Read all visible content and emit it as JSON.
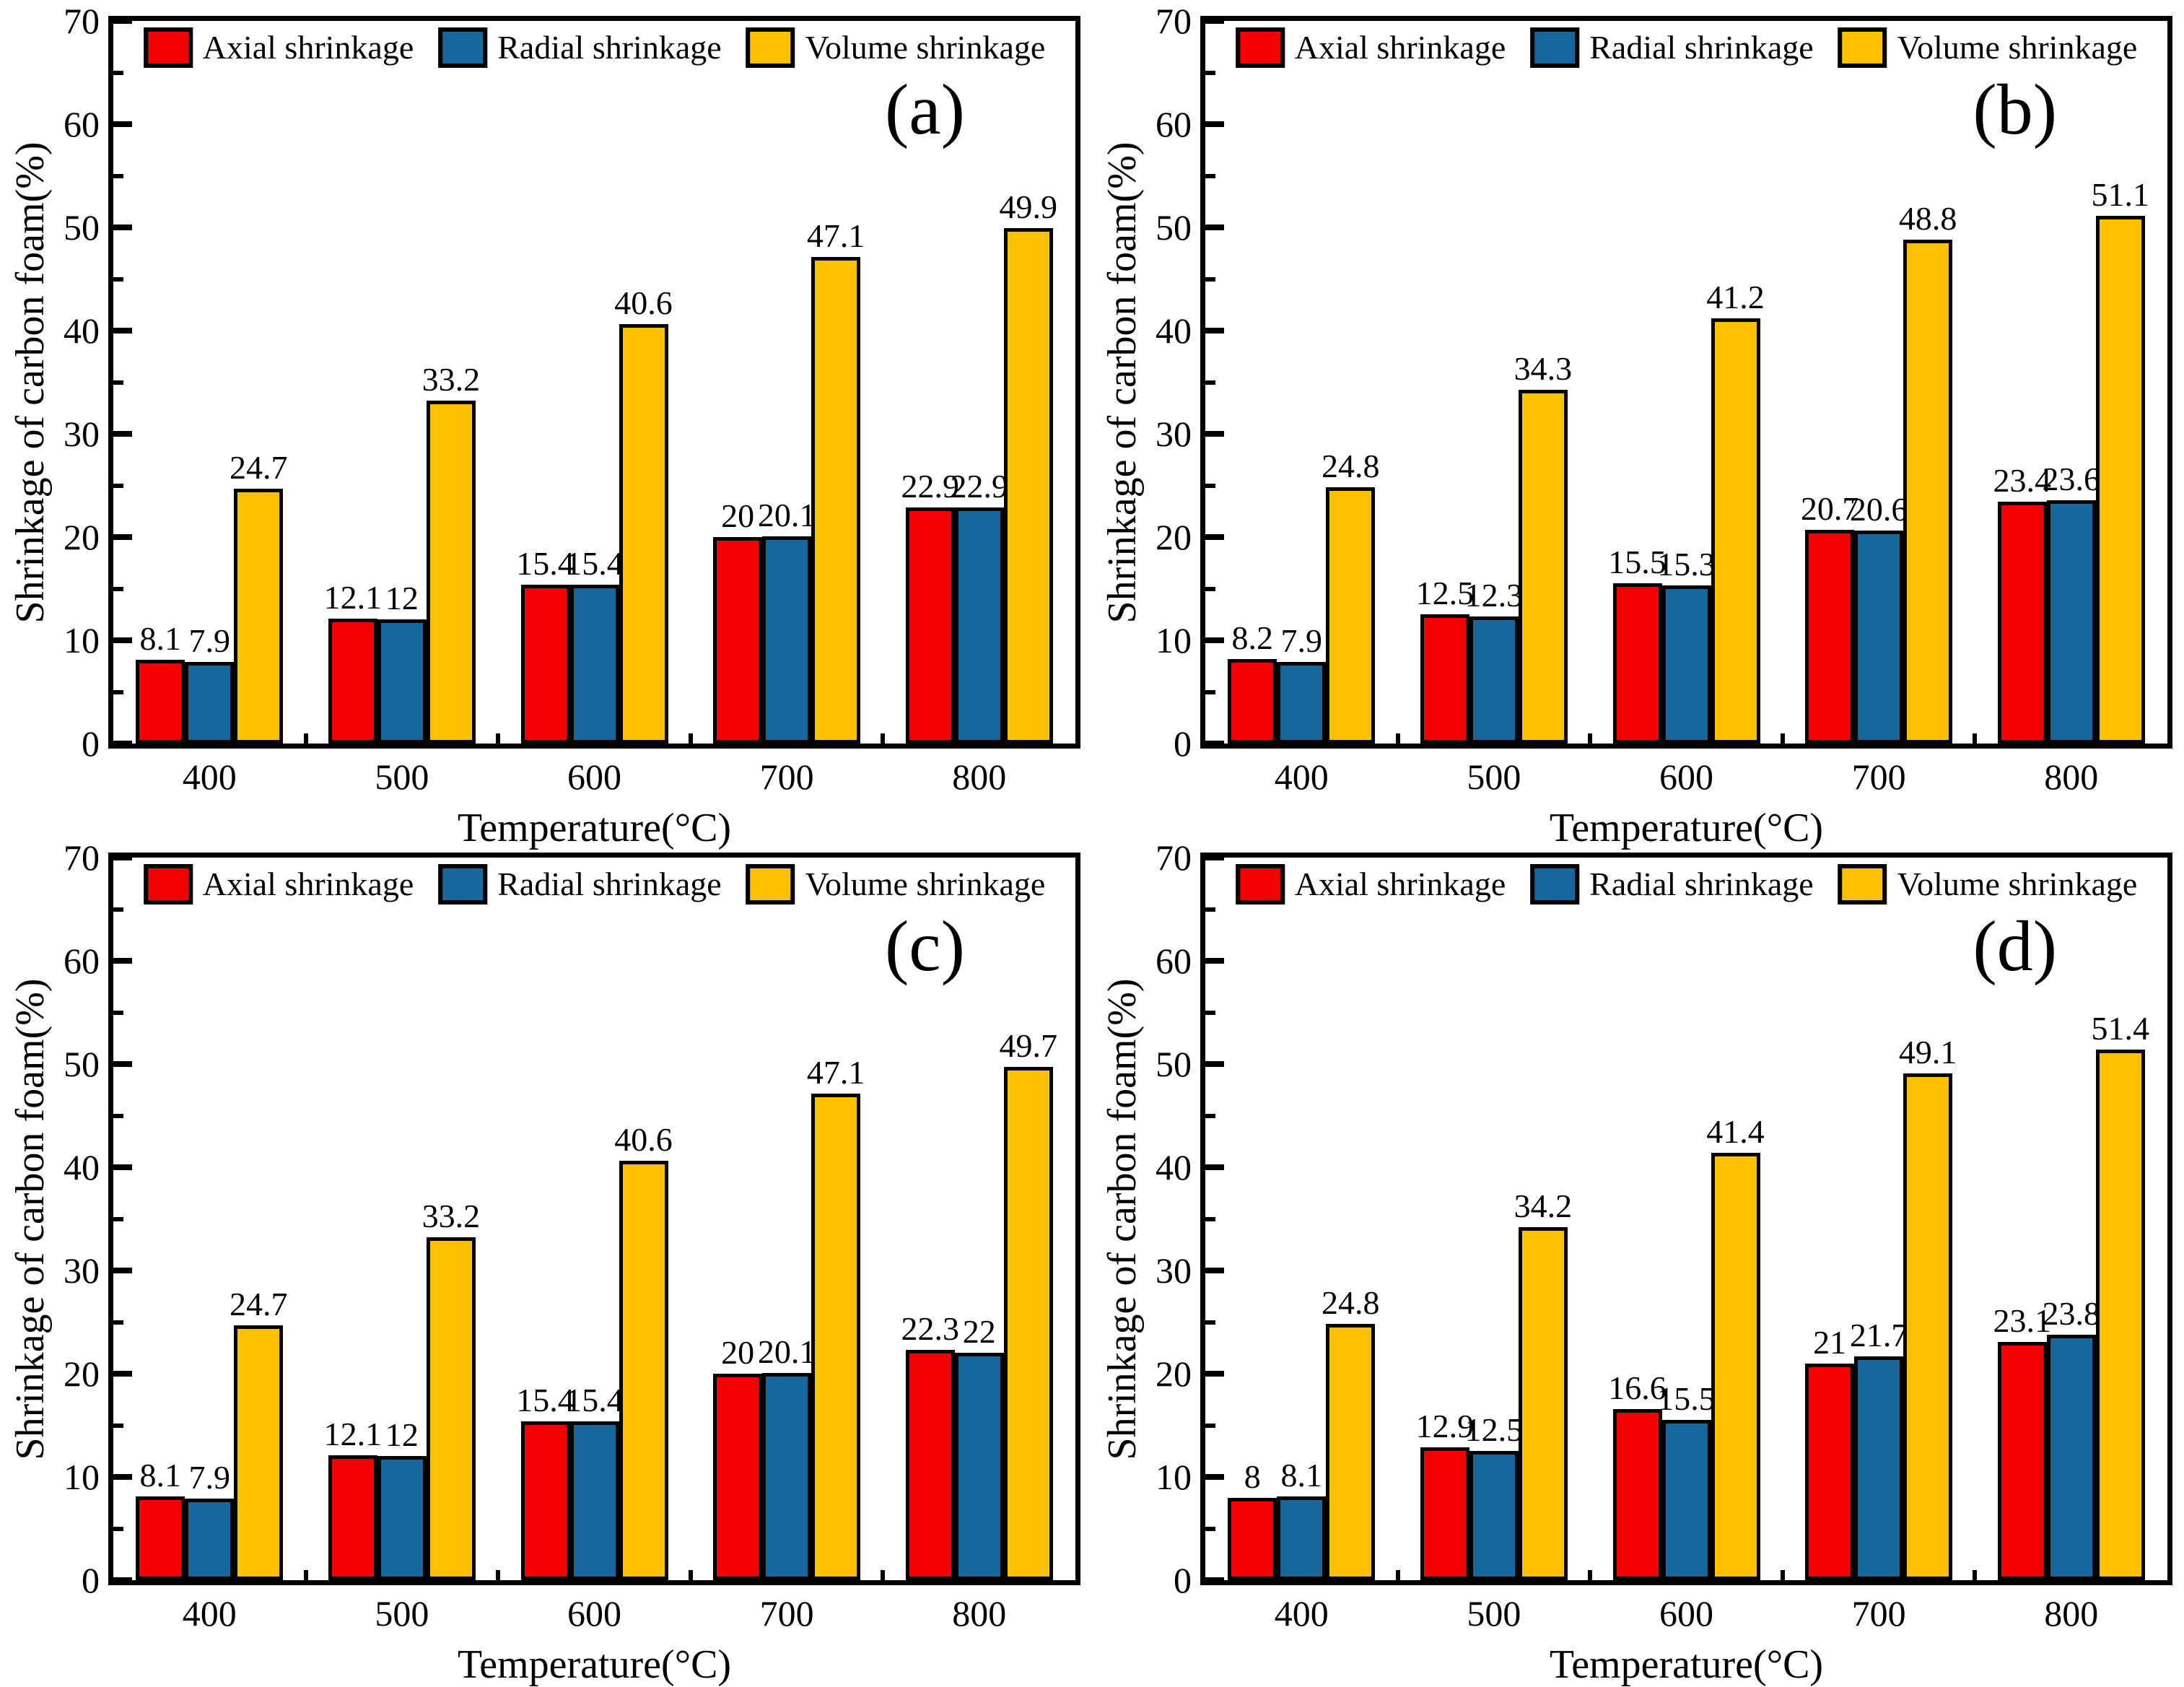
{
  "figure": {
    "ylabel": "Shrinkage of carbon foam(%)",
    "xlabel": "Temperature(°C)",
    "legend": [
      "Axial shrinkage",
      "Radial shrinkage",
      "Volume shrinkage"
    ],
    "colors": {
      "axial": "#f50000",
      "radial": "#16689c",
      "volume": "#ffc000",
      "axis": "#000000",
      "background": "#ffffff"
    },
    "y_tick_labels": [
      "0",
      "10",
      "20",
      "30",
      "40",
      "50",
      "60",
      "70"
    ],
    "ylim": [
      0,
      70
    ],
    "y_major_step": 10,
    "y_minor_step": 5
  },
  "chart_data": [
    {
      "type": "bar",
      "id": "a",
      "panel_label": "(a)",
      "title": "",
      "xlabel": "Temperature(°C)",
      "ylabel": "Shrinkage of carbon foam(%)",
      "ylim": [
        0,
        70
      ],
      "grid": false,
      "legend_position": "top-center-inside",
      "categories": [
        "400",
        "500",
        "600",
        "700",
        "800"
      ],
      "series": [
        {
          "name": "Axial shrinkage",
          "values": [
            8.1,
            12.1,
            15.4,
            20,
            22.9
          ]
        },
        {
          "name": "Radial shrinkage",
          "values": [
            7.9,
            12,
            15.4,
            20.1,
            22.9
          ]
        },
        {
          "name": "Volume shrinkage",
          "values": [
            24.7,
            33.2,
            40.6,
            47.1,
            49.9
          ]
        }
      ]
    },
    {
      "type": "bar",
      "id": "b",
      "panel_label": "(b)",
      "title": "",
      "xlabel": "Temperature(°C)",
      "ylabel": "Shrinkage of carbon foam(%)",
      "ylim": [
        0,
        70
      ],
      "grid": false,
      "legend_position": "top-center-inside",
      "categories": [
        "400",
        "500",
        "600",
        "700",
        "800"
      ],
      "series": [
        {
          "name": "Axial shrinkage",
          "values": [
            8.2,
            12.5,
            15.5,
            20.7,
            23.4
          ]
        },
        {
          "name": "Radial shrinkage",
          "values": [
            7.9,
            12.3,
            15.3,
            20.6,
            23.6
          ]
        },
        {
          "name": "Volume shrinkage",
          "values": [
            24.8,
            34.3,
            41.2,
            48.8,
            51.1
          ]
        }
      ]
    },
    {
      "type": "bar",
      "id": "c",
      "panel_label": "(c)",
      "title": "",
      "xlabel": "Temperature(°C)",
      "ylabel": "Shrinkage of carbon foam(%)",
      "ylim": [
        0,
        70
      ],
      "grid": false,
      "legend_position": "top-center-inside",
      "categories": [
        "400",
        "500",
        "600",
        "700",
        "800"
      ],
      "series": [
        {
          "name": "Axial shrinkage",
          "values": [
            8.1,
            12.1,
            15.4,
            20,
            22.3
          ]
        },
        {
          "name": "Radial shrinkage",
          "values": [
            7.9,
            12,
            15.4,
            20.1,
            22
          ]
        },
        {
          "name": "Volume shrinkage",
          "values": [
            24.7,
            33.2,
            40.6,
            47.1,
            49.7
          ]
        }
      ]
    },
    {
      "type": "bar",
      "id": "d",
      "panel_label": "(d)",
      "title": "",
      "xlabel": "Temperature(°C)",
      "ylabel": "Shrinkage of carbon foam(%)",
      "ylim": [
        0,
        70
      ],
      "grid": false,
      "legend_position": "top-center-inside",
      "categories": [
        "400",
        "500",
        "600",
        "700",
        "800"
      ],
      "series": [
        {
          "name": "Axial shrinkage",
          "values": [
            8,
            12.9,
            16.6,
            21,
            23.1
          ]
        },
        {
          "name": "Radial shrinkage",
          "values": [
            8.1,
            12.5,
            15.5,
            21.7,
            23.8
          ]
        },
        {
          "name": "Volume shrinkage",
          "values": [
            24.8,
            34.2,
            41.4,
            49.1,
            51.4
          ]
        }
      ]
    }
  ]
}
